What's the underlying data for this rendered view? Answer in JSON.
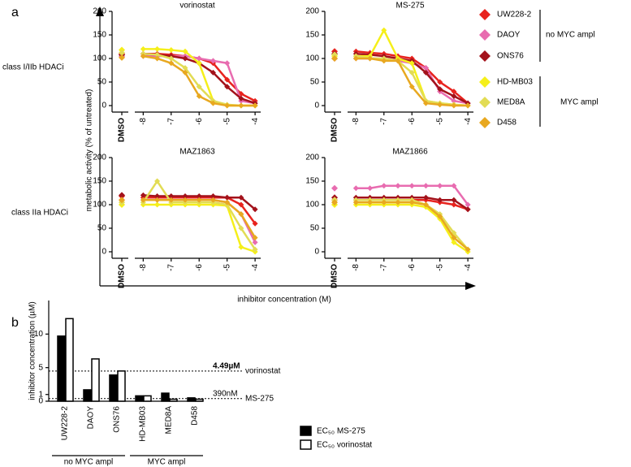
{
  "figure": {
    "panel_a": "a",
    "panel_b": "b",
    "row_labels": [
      "class I/IIb HDACi",
      "class IIa HDACi"
    ],
    "y_label": "metabolic activity (% of untreated)",
    "x_label": "inhibitor concentration (M)",
    "legend": [
      {
        "name": "UW228-2",
        "color": "#e8231e"
      },
      {
        "name": "DAOY",
        "color": "#e86cb0"
      },
      {
        "name": "ONS76",
        "color": "#a3121b"
      },
      {
        "name": "HD-MB03",
        "color": "#f5ef1a"
      },
      {
        "name": "MED8A",
        "color": "#e2dc55"
      },
      {
        "name": "D458",
        "color": "#e8a820"
      }
    ],
    "legend_groups": [
      "no MYC ampl",
      "MYC ampl"
    ]
  },
  "chart_data": [
    {
      "type": "line",
      "title": "vorinostat",
      "dmso_label": "DMSO",
      "x": [
        -8,
        -7.5,
        -7,
        -6.5,
        -6,
        -5.5,
        -5,
        -4.5,
        -4
      ],
      "xlim": [
        -8.3,
        -3.8
      ],
      "xticks": [
        -8,
        -7,
        -6,
        -5,
        -4
      ],
      "ylim": [
        0,
        200
      ],
      "yticks": [
        0,
        50,
        100,
        150,
        200
      ],
      "series": [
        {
          "dmso": 110,
          "values": [
            110,
            110,
            108,
            105,
            100,
            90,
            55,
            25,
            10
          ]
        },
        {
          "dmso": 105,
          "values": [
            105,
            105,
            105,
            105,
            100,
            95,
            90,
            10,
            5
          ]
        },
        {
          "dmso": 108,
          "values": [
            110,
            108,
            105,
            100,
            90,
            70,
            40,
            15,
            5
          ]
        },
        {
          "dmso": 118,
          "values": [
            120,
            120,
            118,
            115,
            90,
            10,
            0,
            0,
            0
          ]
        },
        {
          "dmso": 112,
          "values": [
            110,
            108,
            100,
            80,
            40,
            10,
            2,
            0,
            0
          ]
        },
        {
          "dmso": 102,
          "values": [
            105,
            100,
            90,
            70,
            20,
            5,
            0,
            0,
            0
          ]
        }
      ]
    },
    {
      "type": "line",
      "title": "MS-275",
      "dmso_label": "DMSO",
      "x": [
        -8,
        -7.5,
        -7,
        -6.5,
        -6,
        -5.5,
        -5,
        -4.5,
        -4
      ],
      "xlim": [
        -8.3,
        -3.8
      ],
      "xticks": [
        -8,
        -7,
        -6,
        -5,
        -4
      ],
      "ylim": [
        0,
        200
      ],
      "yticks": [
        0,
        50,
        100,
        150,
        200
      ],
      "series": [
        {
          "dmso": 115,
          "values": [
            115,
            112,
            110,
            105,
            100,
            80,
            50,
            30,
            5
          ]
        },
        {
          "dmso": 100,
          "values": [
            100,
            100,
            100,
            95,
            90,
            80,
            30,
            10,
            5
          ]
        },
        {
          "dmso": 110,
          "values": [
            110,
            108,
            105,
            100,
            95,
            70,
            35,
            20,
            5
          ]
        },
        {
          "dmso": 105,
          "values": [
            105,
            105,
            160,
            100,
            90,
            10,
            5,
            2,
            0
          ]
        },
        {
          "dmso": 108,
          "values": [
            105,
            100,
            100,
            95,
            70,
            10,
            5,
            2,
            0
          ]
        },
        {
          "dmso": 100,
          "values": [
            100,
            100,
            95,
            95,
            40,
            5,
            2,
            0,
            0
          ]
        }
      ]
    },
    {
      "type": "line",
      "title": "MAZ1863",
      "dmso_label": "DMSO",
      "x": [
        -8,
        -7.5,
        -7,
        -6.5,
        -6,
        -5.5,
        -5,
        -4.5,
        -4
      ],
      "xlim": [
        -8.3,
        -3.8
      ],
      "xticks": [
        -8,
        -7,
        -6,
        -5,
        -4
      ],
      "ylim": [
        0,
        200
      ],
      "yticks": [
        0,
        50,
        100,
        150,
        200
      ],
      "series": [
        {
          "dmso": 118,
          "values": [
            115,
            115,
            115,
            115,
            115,
            115,
            115,
            100,
            60
          ]
        },
        {
          "dmso": 110,
          "values": [
            110,
            110,
            110,
            110,
            110,
            110,
            105,
            80,
            20
          ]
        },
        {
          "dmso": 120,
          "values": [
            120,
            118,
            118,
            118,
            118,
            118,
            115,
            115,
            90
          ]
        },
        {
          "dmso": 100,
          "values": [
            100,
            100,
            100,
            100,
            100,
            100,
            98,
            10,
            0
          ]
        },
        {
          "dmso": 105,
          "values": [
            105,
            150,
            105,
            105,
            105,
            105,
            100,
            50,
            5
          ]
        },
        {
          "dmso": 110,
          "values": [
            110,
            110,
            110,
            110,
            110,
            110,
            105,
            80,
            30
          ]
        }
      ]
    },
    {
      "type": "line",
      "title": "MAZ1866",
      "dmso_label": "DMSO",
      "x": [
        -8,
        -7.5,
        -7,
        -6.5,
        -6,
        -5.5,
        -5,
        -4.5,
        -4
      ],
      "xlim": [
        -8.3,
        -3.8
      ],
      "xticks": [
        -8,
        -7,
        -6,
        -5,
        -4
      ],
      "ylim": [
        0,
        200
      ],
      "yticks": [
        0,
        50,
        100,
        150,
        200
      ],
      "series": [
        {
          "dmso": 110,
          "values": [
            110,
            110,
            110,
            110,
            110,
            110,
            105,
            100,
            90
          ]
        },
        {
          "dmso": 135,
          "values": [
            135,
            135,
            140,
            140,
            140,
            140,
            140,
            140,
            100
          ]
        },
        {
          "dmso": 115,
          "values": [
            115,
            115,
            115,
            115,
            115,
            115,
            110,
            110,
            90
          ]
        },
        {
          "dmso": 100,
          "values": [
            100,
            100,
            100,
            100,
            100,
            95,
            70,
            20,
            0
          ]
        },
        {
          "dmso": 110,
          "values": [
            110,
            110,
            110,
            110,
            110,
            100,
            80,
            40,
            5
          ]
        },
        {
          "dmso": 105,
          "values": [
            105,
            105,
            105,
            105,
            105,
            100,
            75,
            30,
            5
          ]
        }
      ]
    },
    {
      "type": "bar",
      "y_label": "inhibitor concentration (µM)",
      "categories": [
        "UW228-2",
        "DAOY",
        "ONS76",
        "HD-MB03",
        "MED8A",
        "D458"
      ],
      "series": [
        {
          "name": "EC₅₀ MS-275",
          "color": "#000000",
          "values": [
            9.7,
            1.7,
            3.9,
            0.8,
            1.2,
            0.5
          ]
        },
        {
          "name": "EC₅₀ vorinostat",
          "color": "#ffffff",
          "values": [
            12.3,
            6.3,
            4.5,
            0.8,
            0.3,
            0.3
          ]
        }
      ],
      "ylim": [
        0,
        15
      ],
      "yticks": [
        0,
        1,
        5,
        10
      ],
      "reference_lines": [
        {
          "value": 4.49,
          "label": "4.49µM",
          "name": "vorinostat"
        },
        {
          "value": 0.39,
          "label": "390nM",
          "name": "MS-275"
        }
      ],
      "groups": [
        "no MYC ampl",
        "MYC ampl"
      ]
    }
  ]
}
